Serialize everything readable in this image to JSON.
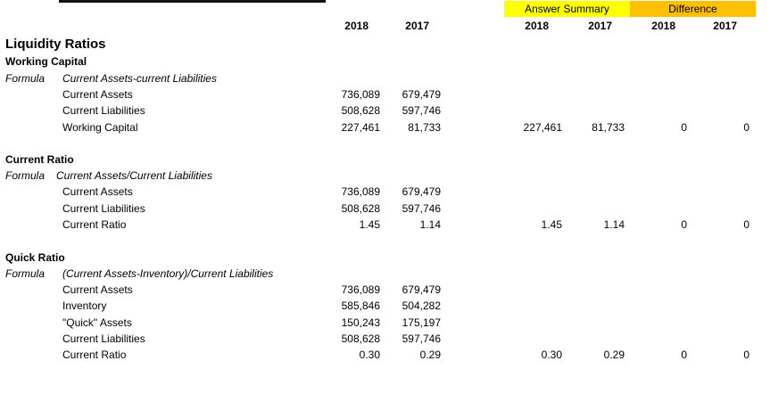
{
  "header": {
    "answer_summary": "Answer Summary",
    "difference": "Difference",
    "year_2018": "2018",
    "year_2017": "2017"
  },
  "title": "Liquidity Ratios",
  "sections": [
    {
      "name": "Working Capital",
      "formula_label": "Formula",
      "formula": "Current Assets-current Liabilities",
      "rows": [
        {
          "label": "Current Assets",
          "v2018": "736,089",
          "v2017": "679,479"
        },
        {
          "label": "Current Liabilities",
          "v2018": "508,628",
          "v2017": "597,746"
        },
        {
          "label": "Working Capital",
          "v2018": "227,461",
          "v2017": "81,733"
        }
      ],
      "summary": {
        "a2018": "227,461",
        "a2017": "81,733",
        "d2018": "0",
        "d2017": "0"
      }
    },
    {
      "name": "Current Ratio",
      "formula_label": "Formula",
      "formula": "Current Assets/Current Liabilities",
      "rows": [
        {
          "label": "Current Assets",
          "v2018": "736,089",
          "v2017": "679,479"
        },
        {
          "label": "Current Liabilities",
          "v2018": "508,628",
          "v2017": "597,746"
        },
        {
          "label": "Current Ratio",
          "v2018": "1.45",
          "v2017": "1.14"
        }
      ],
      "summary": {
        "a2018": "1.45",
        "a2017": "1.14",
        "d2018": "0",
        "d2017": "0"
      }
    },
    {
      "name": "Quick Ratio",
      "formula_label": "Formula",
      "formula": "(Current Assets-Inventory)/Current Liabilities",
      "rows": [
        {
          "label": "Current Assets",
          "v2018": "736,089",
          "v2017": "679,479"
        },
        {
          "label": "Inventory",
          "v2018": "585,846",
          "v2017": "504,282"
        },
        {
          "label": "\"Quick\" Assets",
          "v2018": "150,243",
          "v2017": "175,197"
        },
        {
          "label": "Current Liabilities",
          "v2018": "508,628",
          "v2017": "597,746"
        },
        {
          "label": "Current Ratio",
          "v2018": "0.30",
          "v2017": "0.29"
        }
      ],
      "summary": {
        "a2018": "0.30",
        "a2017": "0.29",
        "d2018": "0",
        "d2017": "0"
      }
    }
  ]
}
